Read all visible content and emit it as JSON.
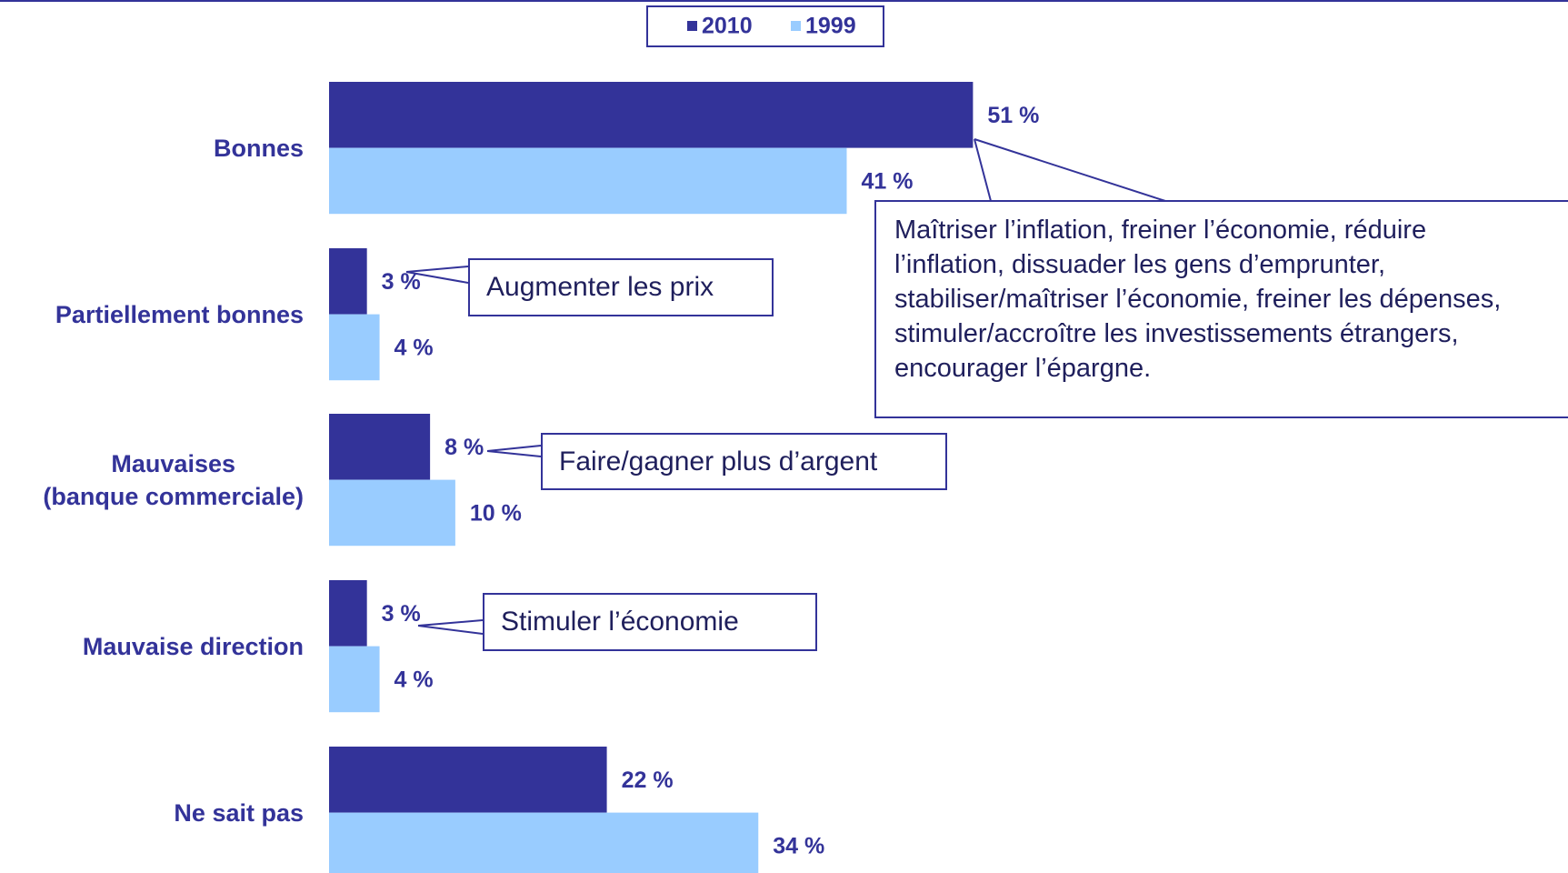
{
  "chart_data": {
    "type": "hbar",
    "categories": [
      "Bonnes",
      "Partiellement bonnes",
      "Mauvaises\n(banque commerciale)",
      "Mauvaise direction",
      "Ne sait pas"
    ],
    "series": [
      {
        "name": "2010",
        "color": "#333399",
        "values": [
          51,
          3,
          8,
          3,
          22
        ],
        "value_labels": [
          "51 %",
          "3 %",
          "8 %",
          "3 %",
          "22 %"
        ]
      },
      {
        "name": "1999",
        "color": "#99ccff",
        "values": [
          41,
          4,
          10,
          4,
          34
        ],
        "value_labels": [
          "41 %",
          "4 %",
          "10 %",
          "4 %",
          "34 %"
        ]
      }
    ],
    "legend": "top",
    "annotations": [
      "Maîtriser l’inflation, freiner l’économie, réduire l’inflation, dissuader les gens d’emprunter, stabiliser/maîtriser l’économie, freiner les dépenses, stimuler/accroître les investissements étrangers, encourager l’épargne.",
      "Augmenter les prix",
      "Faire/gagner plus d’argent",
      "Stimuler l’économie"
    ]
  }
}
